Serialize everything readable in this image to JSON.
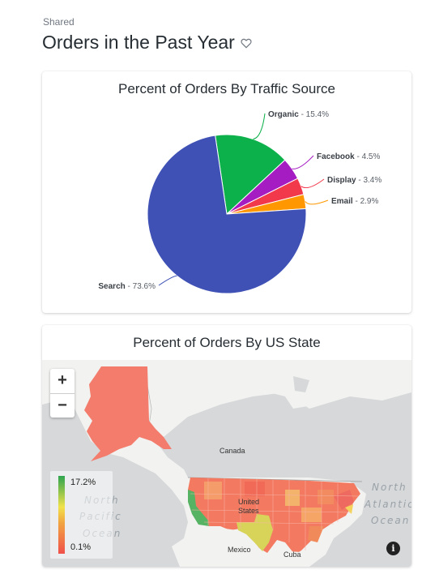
{
  "header": {
    "breadcrumb": "Shared",
    "title": "Orders in the Past Year"
  },
  "pie_card": {
    "title": "Percent of Orders By Traffic Source"
  },
  "map_card": {
    "title": "Percent of Orders By US State",
    "zoom_in": "+",
    "zoom_out": "−",
    "legend_max": "17.2%",
    "legend_min": "0.1%",
    "labels": {
      "canada": "Canada",
      "usa_line1": "United",
      "usa_line2": "States",
      "mexico": "Mexico",
      "cuba": "Cuba",
      "north_pacific_1": "North",
      "north_pacific_2": "Pacific",
      "north_pacific_3": "Ocean",
      "north_atlantic_1": "North",
      "north_atlantic_2": "Atlantic",
      "north_atlantic_3": "Ocean"
    },
    "info_icon": "i"
  },
  "chart_data": {
    "type": "pie",
    "title": "Percent of Orders By Traffic Source",
    "slices": [
      {
        "name": "Search",
        "value": 73.6,
        "label": "- 73.6%",
        "color": "#3f51b5"
      },
      {
        "name": "Organic",
        "value": 15.4,
        "label": "- 15.4%",
        "color": "#0db14b"
      },
      {
        "name": "Facebook",
        "value": 4.5,
        "label": "- 4.5%",
        "color": "#a51cc2"
      },
      {
        "name": "Display",
        "value": 3.4,
        "label": "- 3.4%",
        "color": "#f2384b"
      },
      {
        "name": "Email",
        "value": 2.9,
        "label": "- 2.9%",
        "color": "#ff9800"
      }
    ]
  }
}
